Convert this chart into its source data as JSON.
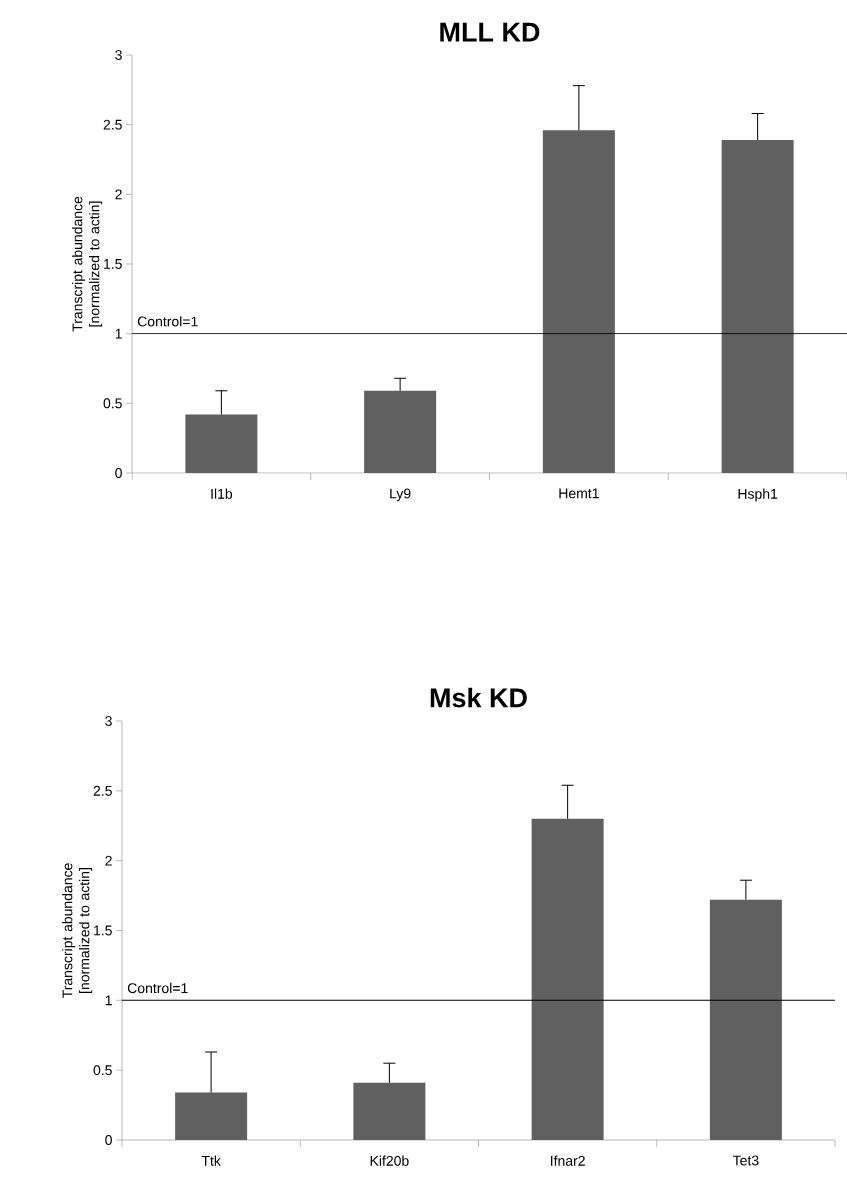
{
  "chart_data": [
    {
      "type": "bar",
      "title": "MLL KD",
      "ylabel": "Transcript abundance [normalized to actin]",
      "categories": [
        "Il1b",
        "Ly9",
        "Hemt1",
        "Hsph1"
      ],
      "values": [
        0.42,
        0.59,
        2.46,
        2.39
      ],
      "errors": [
        [
          0.42,
          0.59
        ],
        [
          0.59,
          0.68
        ],
        [
          2.46,
          2.78
        ],
        [
          2.39,
          2.58
        ]
      ],
      "color": "#606060",
      "ylim": [
        0,
        3
      ],
      "yticks": [
        0,
        0.5,
        1,
        1.5,
        2,
        2.5,
        3
      ],
      "ref_lines": [
        {
          "axis": "y",
          "value": 1,
          "label": "Control=1",
          "color": "#000000"
        }
      ]
    },
    {
      "type": "bar",
      "title": "Msk KD",
      "ylabel": "Transcript abundance [normalized to actin]",
      "categories": [
        "Ttk",
        "Kif20b",
        "Ifnar2",
        "Tet3"
      ],
      "values": [
        0.34,
        0.41,
        2.3,
        1.72
      ],
      "errors": [
        [
          0.34,
          0.63
        ],
        [
          0.41,
          0.55
        ],
        [
          2.3,
          2.54
        ],
        [
          1.72,
          1.86
        ]
      ],
      "color": "#606060",
      "ylim": [
        0,
        3
      ],
      "yticks": [
        0,
        0.5,
        1,
        1.5,
        2,
        2.5,
        3
      ],
      "ref_lines": [
        {
          "axis": "y",
          "value": 1,
          "label": "Control=1",
          "color": "#000000"
        }
      ]
    }
  ]
}
